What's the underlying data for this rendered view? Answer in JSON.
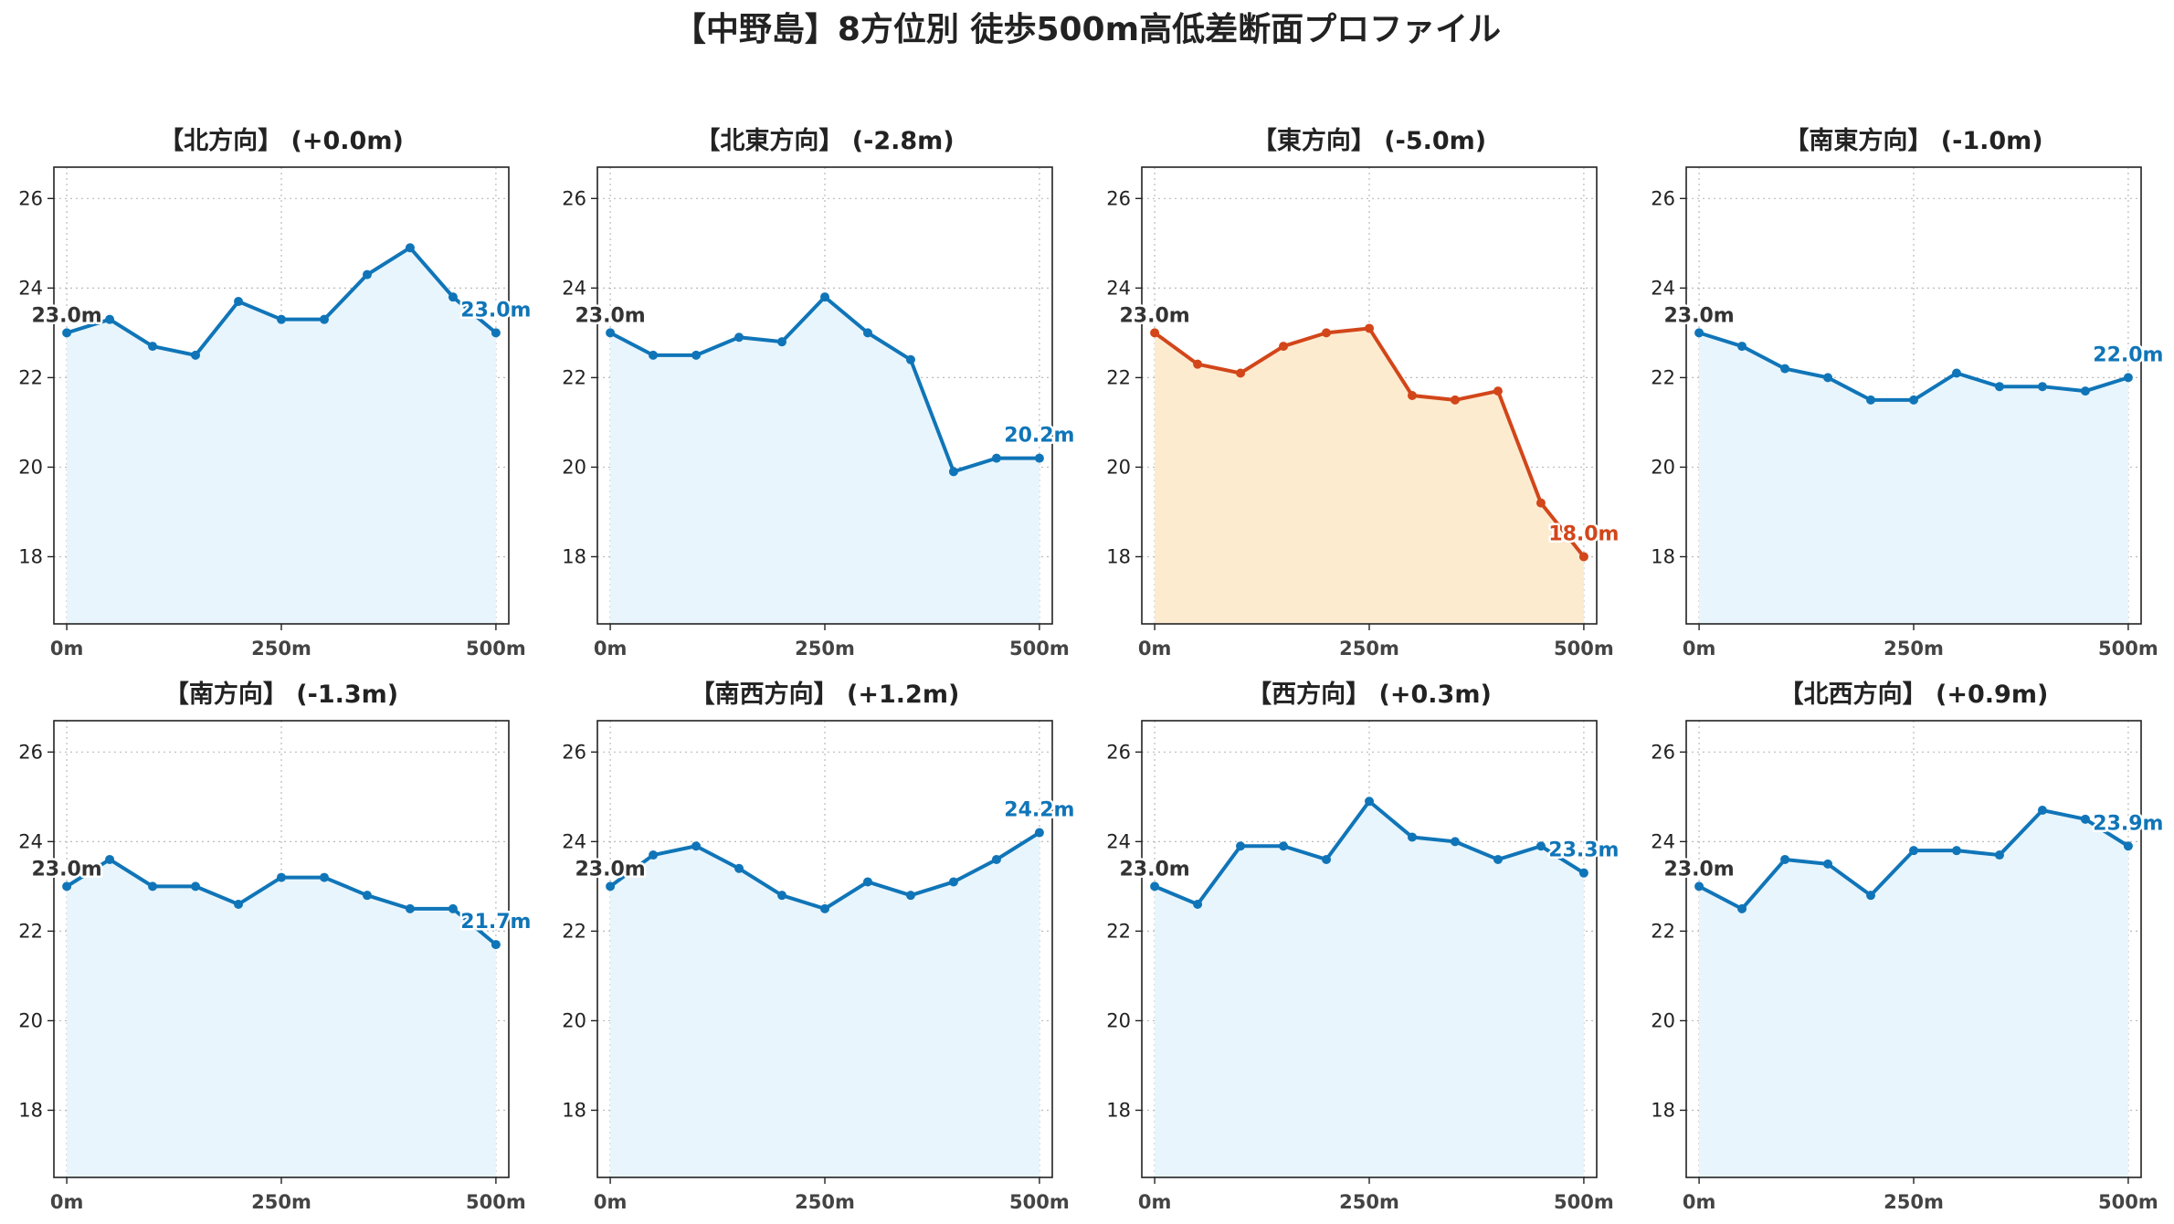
{
  "title": "【中野島】8方位別 徒歩500m高低差断面プロファイル",
  "colors": {
    "normal_line": "#1075b8",
    "normal_fill": "#e8f5fc",
    "highlight_line": "#d2461a",
    "highlight_fill": "#fdebd0",
    "grid": "#bbbbbb"
  },
  "chart_data": [
    {
      "type": "area",
      "title": "【北方向】 (+0.0m)",
      "highlight": false,
      "x": [
        0,
        50,
        100,
        150,
        200,
        250,
        300,
        350,
        400,
        450,
        500
      ],
      "y": [
        23.0,
        23.3,
        22.7,
        22.5,
        23.7,
        23.3,
        23.3,
        24.3,
        24.9,
        23.8,
        23.0
      ],
      "start_label": "23.0m",
      "end_label": "23.0m",
      "xticks": [
        0,
        250,
        500
      ],
      "xtick_labels": [
        "0m",
        "250m",
        "500m"
      ],
      "yticks": [
        18,
        20,
        22,
        24,
        26
      ],
      "ylim": [
        16.5,
        26.7
      ],
      "xlim": [
        -15,
        515
      ],
      "grid": true
    },
    {
      "type": "area",
      "title": "【北東方向】 (-2.8m)",
      "highlight": false,
      "x": [
        0,
        50,
        100,
        150,
        200,
        250,
        300,
        350,
        400,
        450,
        500
      ],
      "y": [
        23.0,
        22.5,
        22.5,
        22.9,
        22.8,
        23.8,
        23.0,
        22.4,
        19.9,
        20.2,
        20.2
      ],
      "start_label": "23.0m",
      "end_label": "20.2m",
      "xticks": [
        0,
        250,
        500
      ],
      "xtick_labels": [
        "0m",
        "250m",
        "500m"
      ],
      "yticks": [
        18,
        20,
        22,
        24,
        26
      ],
      "ylim": [
        16.5,
        26.7
      ],
      "xlim": [
        -15,
        515
      ],
      "grid": true
    },
    {
      "type": "area",
      "title": "【東方向】 (-5.0m)",
      "highlight": true,
      "x": [
        0,
        50,
        100,
        150,
        200,
        250,
        300,
        350,
        400,
        450,
        500
      ],
      "y": [
        23.0,
        22.3,
        22.1,
        22.7,
        23.0,
        23.1,
        21.6,
        21.5,
        21.7,
        19.2,
        18.0
      ],
      "start_label": "23.0m",
      "end_label": "18.0m",
      "xticks": [
        0,
        250,
        500
      ],
      "xtick_labels": [
        "0m",
        "250m",
        "500m"
      ],
      "yticks": [
        18,
        20,
        22,
        24,
        26
      ],
      "ylim": [
        16.5,
        26.7
      ],
      "xlim": [
        -15,
        515
      ],
      "grid": true
    },
    {
      "type": "area",
      "title": "【南東方向】 (-1.0m)",
      "highlight": false,
      "x": [
        0,
        50,
        100,
        150,
        200,
        250,
        300,
        350,
        400,
        450,
        500
      ],
      "y": [
        23.0,
        22.7,
        22.2,
        22.0,
        21.5,
        21.5,
        22.1,
        21.8,
        21.8,
        21.7,
        22.0
      ],
      "start_label": "23.0m",
      "end_label": "22.0m",
      "xticks": [
        0,
        250,
        500
      ],
      "xtick_labels": [
        "0m",
        "250m",
        "500m"
      ],
      "yticks": [
        18,
        20,
        22,
        24,
        26
      ],
      "ylim": [
        16.5,
        26.7
      ],
      "xlim": [
        -15,
        515
      ],
      "grid": true
    },
    {
      "type": "area",
      "title": "【南方向】 (-1.3m)",
      "highlight": false,
      "x": [
        0,
        50,
        100,
        150,
        200,
        250,
        300,
        350,
        400,
        450,
        500
      ],
      "y": [
        23.0,
        23.6,
        23.0,
        23.0,
        22.6,
        23.2,
        23.2,
        22.8,
        22.5,
        22.5,
        21.7
      ],
      "start_label": "23.0m",
      "end_label": "21.7m",
      "xticks": [
        0,
        250,
        500
      ],
      "xtick_labels": [
        "0m",
        "250m",
        "500m"
      ],
      "yticks": [
        18,
        20,
        22,
        24,
        26
      ],
      "ylim": [
        16.5,
        26.7
      ],
      "xlim": [
        -15,
        515
      ],
      "grid": true
    },
    {
      "type": "area",
      "title": "【南西方向】 (+1.2m)",
      "highlight": false,
      "x": [
        0,
        50,
        100,
        150,
        200,
        250,
        300,
        350,
        400,
        450,
        500
      ],
      "y": [
        23.0,
        23.7,
        23.9,
        23.4,
        22.8,
        22.5,
        23.1,
        22.8,
        23.1,
        23.6,
        24.2
      ],
      "start_label": "23.0m",
      "end_label": "24.2m",
      "xticks": [
        0,
        250,
        500
      ],
      "xtick_labels": [
        "0m",
        "250m",
        "500m"
      ],
      "yticks": [
        18,
        20,
        22,
        24,
        26
      ],
      "ylim": [
        16.5,
        26.7
      ],
      "xlim": [
        -15,
        515
      ],
      "grid": true
    },
    {
      "type": "area",
      "title": "【西方向】 (+0.3m)",
      "highlight": false,
      "x": [
        0,
        50,
        100,
        150,
        200,
        250,
        300,
        350,
        400,
        450,
        500
      ],
      "y": [
        23.0,
        22.6,
        23.9,
        23.9,
        23.6,
        24.9,
        24.1,
        24.0,
        23.6,
        23.9,
        23.3
      ],
      "start_label": "23.0m",
      "end_label": "23.3m",
      "xticks": [
        0,
        250,
        500
      ],
      "xtick_labels": [
        "0m",
        "250m",
        "500m"
      ],
      "yticks": [
        18,
        20,
        22,
        24,
        26
      ],
      "ylim": [
        16.5,
        26.7
      ],
      "xlim": [
        -15,
        515
      ],
      "grid": true
    },
    {
      "type": "area",
      "title": "【北西方向】 (+0.9m)",
      "highlight": false,
      "x": [
        0,
        50,
        100,
        150,
        200,
        250,
        300,
        350,
        400,
        450,
        500
      ],
      "y": [
        23.0,
        22.5,
        23.6,
        23.5,
        22.8,
        23.8,
        23.8,
        23.7,
        24.7,
        24.5,
        23.9
      ],
      "start_label": "23.0m",
      "end_label": "23.9m",
      "xticks": [
        0,
        250,
        500
      ],
      "xtick_labels": [
        "0m",
        "250m",
        "500m"
      ],
      "yticks": [
        18,
        20,
        22,
        24,
        26
      ],
      "ylim": [
        16.5,
        26.7
      ],
      "xlim": [
        -15,
        515
      ],
      "grid": true
    }
  ]
}
